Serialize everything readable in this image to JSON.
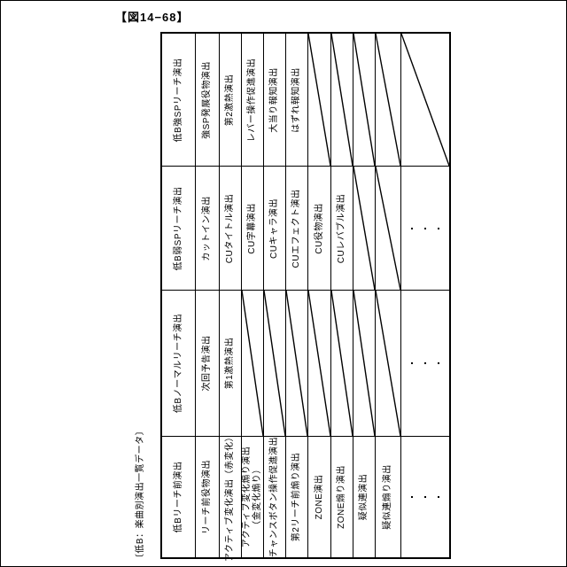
{
  "figure": {
    "title": "【図14−68】",
    "caption": "〔低B：楽曲別演出一覧データ〕"
  },
  "table": {
    "description": "rotated performance list table, text reads bottom-to-top",
    "rows": [
      {
        "name": "row-low-b-strong-sp-reach",
        "cells": [
          {
            "t": "text",
            "header": true,
            "v": "低B強SPリーチ演出"
          },
          {
            "t": "text",
            "v": "強SP発展役物演出"
          },
          {
            "t": "text",
            "v": "第2激熱演出"
          },
          {
            "t": "text",
            "v": "レバー操作促進演出"
          },
          {
            "t": "text",
            "v": "大当り報知演出"
          },
          {
            "t": "text",
            "v": "はずれ報知演出"
          },
          {
            "t": "diag"
          },
          {
            "t": "diag"
          },
          {
            "t": "diag"
          },
          {
            "t": "diag"
          },
          {
            "t": "diag"
          }
        ]
      },
      {
        "name": "row-low-b-weak-sp-reach",
        "cells": [
          {
            "t": "text",
            "header": true,
            "v": "低B弱SPリーチ演出"
          },
          {
            "t": "text",
            "v": "カットイン演出"
          },
          {
            "t": "text",
            "v": "CUタイトル演出"
          },
          {
            "t": "text",
            "v": "CU字幕演出"
          },
          {
            "t": "text",
            "v": "CUキャラ演出"
          },
          {
            "t": "text",
            "v": "CUエフェクト演出"
          },
          {
            "t": "text",
            "v": "CU役物演出"
          },
          {
            "t": "text",
            "v": "CUレバブル演出"
          },
          {
            "t": "diag"
          },
          {
            "t": "diag"
          },
          {
            "t": "dots",
            "v": "・・・"
          }
        ]
      },
      {
        "name": "row-low-b-normal-reach",
        "cells": [
          {
            "t": "text",
            "header": true,
            "v": "低Bノーマルリーチ演出"
          },
          {
            "t": "text",
            "v": "次回予告演出"
          },
          {
            "t": "text",
            "v": "第1激熱演出"
          },
          {
            "t": "diag"
          },
          {
            "t": "diag"
          },
          {
            "t": "diag"
          },
          {
            "t": "diag"
          },
          {
            "t": "diag"
          },
          {
            "t": "diag"
          },
          {
            "t": "diag"
          },
          {
            "t": "dots",
            "v": "・・・"
          }
        ]
      },
      {
        "name": "row-low-b-before-reach",
        "cells": [
          {
            "t": "text",
            "header": true,
            "v": "低Bリーチ前演出"
          },
          {
            "t": "text",
            "v": "リーチ前役物演出"
          },
          {
            "t": "text",
            "v": "アクティブ変化演出（赤変化）"
          },
          {
            "t": "text",
            "v": "アクティブ変化煽り演出\n（金変化煽り）"
          },
          {
            "t": "text",
            "v": "チャンスボタン操作促進演出"
          },
          {
            "t": "text",
            "v": "第2リーチ前煽り演出"
          },
          {
            "t": "text",
            "v": "ZONE演出"
          },
          {
            "t": "text",
            "v": "ZONE煽り演出"
          },
          {
            "t": "text",
            "v": "疑似連演出"
          },
          {
            "t": "text",
            "v": "疑似連煽り演出"
          },
          {
            "t": "dots",
            "v": "・・・"
          }
        ]
      }
    ]
  }
}
